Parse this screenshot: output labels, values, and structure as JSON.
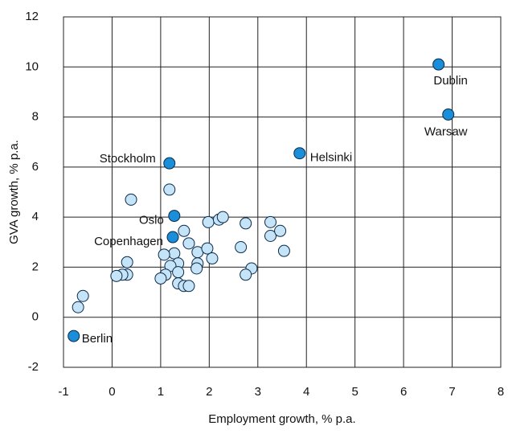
{
  "chart_data": {
    "type": "scatter",
    "x_label": "Employment growth, % p.a.",
    "y_label": "GVA growth, % p.a.",
    "xlim": [
      -1,
      8
    ],
    "xticks": [
      -1,
      0,
      1,
      2,
      3,
      4,
      5,
      6,
      7,
      8
    ],
    "ylim": [
      -2,
      12
    ],
    "yticks": [
      -2,
      0,
      2,
      4,
      6,
      8,
      10,
      12
    ],
    "grid": true,
    "series": [
      {
        "color": "#c6e4f8",
        "x": [
          0.39,
          1.18,
          1.98,
          2.2,
          2.28,
          2.75,
          3.26,
          3.26,
          3.46,
          3.54,
          2.65,
          2.87,
          2.75,
          1.48,
          1.58,
          1.28,
          1.07,
          1.76,
          1.96,
          2.06,
          1.76,
          1.74,
          1.36,
          1.2,
          1.36,
          1.1,
          1.0,
          1.36,
          1.48,
          1.58,
          0.31,
          0.31,
          0.21,
          0.09,
          -0.6,
          -0.7
        ],
        "values": [
          4.7,
          5.1,
          3.8,
          3.9,
          4.0,
          3.75,
          3.8,
          3.25,
          3.45,
          2.65,
          2.8,
          1.95,
          1.7,
          3.45,
          2.95,
          2.55,
          2.5,
          2.6,
          2.75,
          2.35,
          2.15,
          1.95,
          2.15,
          2.05,
          1.8,
          1.7,
          1.55,
          1.35,
          1.25,
          1.25,
          2.2,
          1.7,
          1.7,
          1.65,
          0.85,
          0.4
        ]
      },
      {
        "color": "#1b8ed9",
        "x": [
          6.72,
          6.92,
          3.86,
          1.18,
          1.28,
          1.25,
          -0.79
        ],
        "values": [
          10.1,
          8.1,
          6.55,
          6.15,
          4.05,
          3.2,
          -0.75
        ],
        "labels": [
          "Dublin",
          "Warsaw",
          "Helsinki",
          "Stockholm",
          "Oslo",
          "Copenhagen",
          "Berlin"
        ]
      }
    ]
  }
}
